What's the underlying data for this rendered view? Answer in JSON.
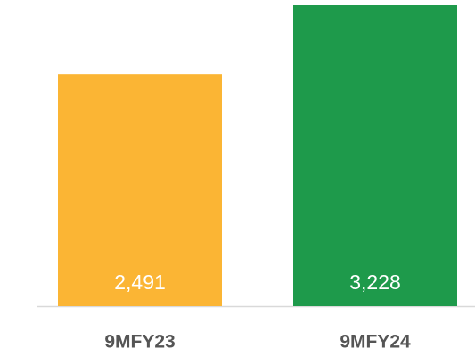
{
  "chart_data": {
    "type": "bar",
    "categories": [
      "9MFY23",
      "9MFY24"
    ],
    "values": [
      2491,
      3228
    ],
    "value_labels": [
      "2,491",
      "3,228"
    ],
    "colors": [
      "#FBB534",
      "#1E9A4B"
    ]
  }
}
